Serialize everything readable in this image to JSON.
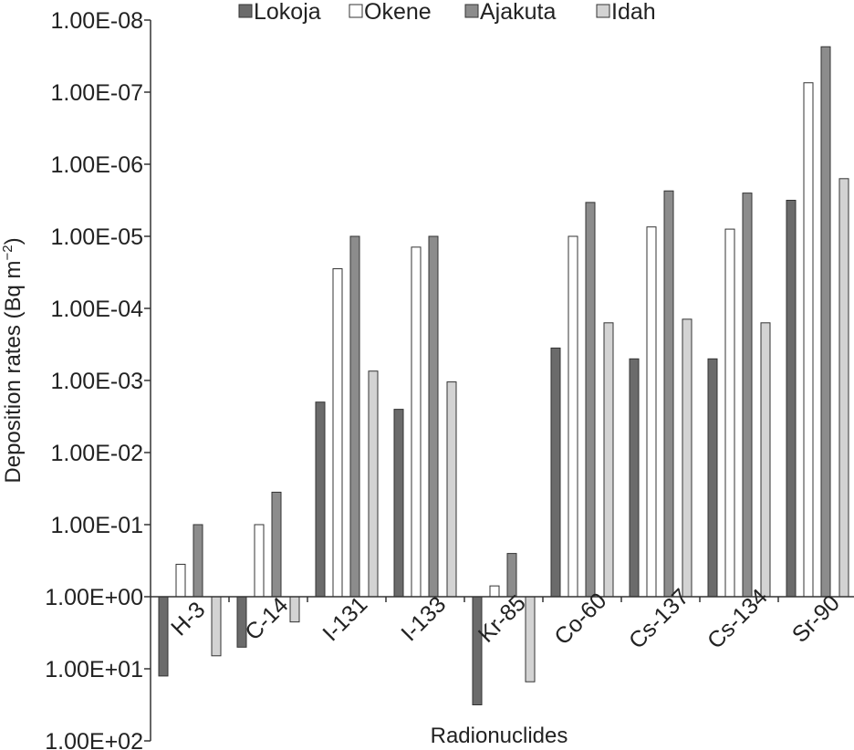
{
  "chart_data": {
    "type": "bar",
    "xlabel": "Radionuclides",
    "ylabel": "Deposition rates (Bq m",
    "ylabel_sup": "−2",
    "ylabel_close": ")",
    "scale": "log-inverted",
    "y_ticks": [
      "1.00E-08",
      "1.00E-07",
      "1.00E-06",
      "1.00E-05",
      "1.00E-04",
      "1.00E-03",
      "1.00E-02",
      "1.00E-01",
      "1.00E+00",
      "1.00E+01",
      "1.00E+02"
    ],
    "y_tick_values": [
      -8,
      -7,
      -6,
      -5,
      -4,
      -3,
      -2,
      -1,
      0,
      1,
      2
    ],
    "ylim": [
      -8,
      2
    ],
    "legend_position": "top",
    "categories": [
      "H-3",
      "C-14",
      "I-131",
      "I-133",
      "Kr-85",
      "Co-60",
      "Cs-137",
      "Cs-134",
      "Sr-90"
    ],
    "series": [
      {
        "name": "Lokoja",
        "color": "#6b6b6b",
        "exponents": [
          1.1,
          0.7,
          -2.7,
          -2.6,
          1.5,
          -3.45,
          -3.3,
          -3.3,
          -5.5
        ]
      },
      {
        "name": "Okene",
        "color": "#ffffff",
        "exponents": [
          -0.45,
          -1.0,
          -4.55,
          -4.85,
          -0.15,
          -5.0,
          -5.13,
          -5.1,
          -7.13
        ]
      },
      {
        "name": "Ajakuta",
        "color": "#8c8c8c",
        "exponents": [
          -1.0,
          -1.45,
          -5.0,
          -5.0,
          -0.6,
          -5.47,
          -5.63,
          -5.6,
          -7.63
        ]
      },
      {
        "name": "Idah",
        "color": "#d3d3d3",
        "exponents": [
          0.82,
          0.35,
          -3.13,
          -2.98,
          1.18,
          -3.8,
          -3.85,
          -3.8,
          -5.8
        ]
      }
    ]
  }
}
